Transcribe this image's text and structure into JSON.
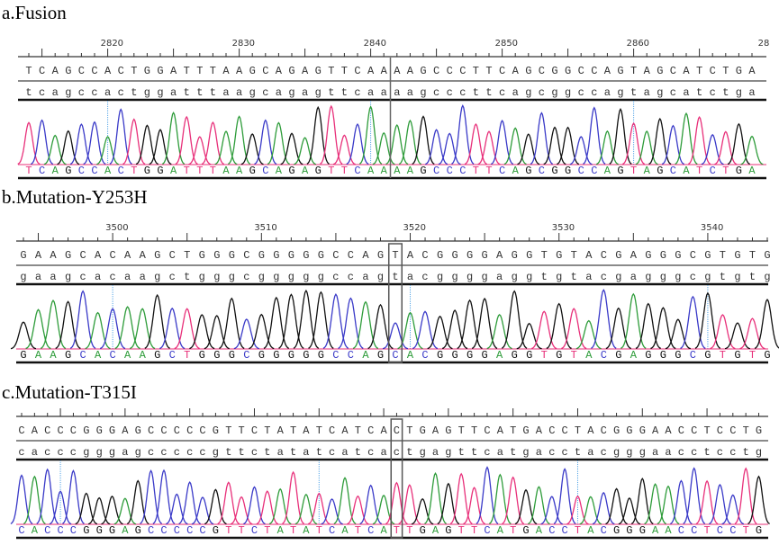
{
  "base_colors": {
    "A": "#2e9c3a",
    "C": "#3a3ac8",
    "G": "#111111",
    "T": "#e8307a"
  },
  "panels": [
    {
      "id": "a",
      "title": "a.Fusion",
      "first_position": 2814,
      "labeled_positions": [
        "2820",
        "2830",
        "2840",
        "2850",
        "2860",
        "28"
      ],
      "reference_sequence": "TCAGCCACTGGATTTAAGCAGAGTTCAAAAGCCCTTCAGCGGCCAGTAGCATCTGA",
      "aligned_sequence": "tcagccactggatttaagcagagttcaaaagcccttcagcggccagtagcatctga",
      "called_sequence": "TCAGCCACTGGATTTAAGCAGAGTTCAAAAGCCCTTCAGCGGCCAGTAGCATCTGA",
      "marker": "junction-line-after-base-28"
    },
    {
      "id": "b",
      "title": "b.Mutation-Y253H",
      "first_position": 3494,
      "labeled_positions": [
        "3500",
        "3510",
        "3520",
        "3530",
        "3540"
      ],
      "reference_sequence": "GAAGCACAAGCTGGGCGGGGGCCAGTACGGGGAGGTGTACGAGGGCGTGTG",
      "aligned_sequence": "gaagcacaagctgggcgggggccagtacggggaggtgtacgagggcgtgtg",
      "called_sequence": "GAAGCACAAGCTGGGCGGGGGCCAGCACGGGGAGGTGTACGAGGGCGTGTG",
      "highlighted_base": 26,
      "reference_base": "T",
      "called_base": "C"
    },
    {
      "id": "c",
      "title": "c.Mutation-T315I",
      "labeled_positions": [],
      "reference_sequence": "CACCCGGGAGCCCCCGTTCTATATCATCACTGAGTTCATGACCTACGGGAACCTCCTG",
      "aligned_sequence": "cacccgggagcccccgttctatatcatcactgagttcatgacctacgggaacctcctg",
      "called_sequence": "CACCCGGGAGCCCCCGTTCTATATCATCATTGAGTTCATGACCTACGGGAACCTCCTG",
      "highlighted_base": 30,
      "reference_base": "C",
      "called_base": "T"
    }
  ]
}
